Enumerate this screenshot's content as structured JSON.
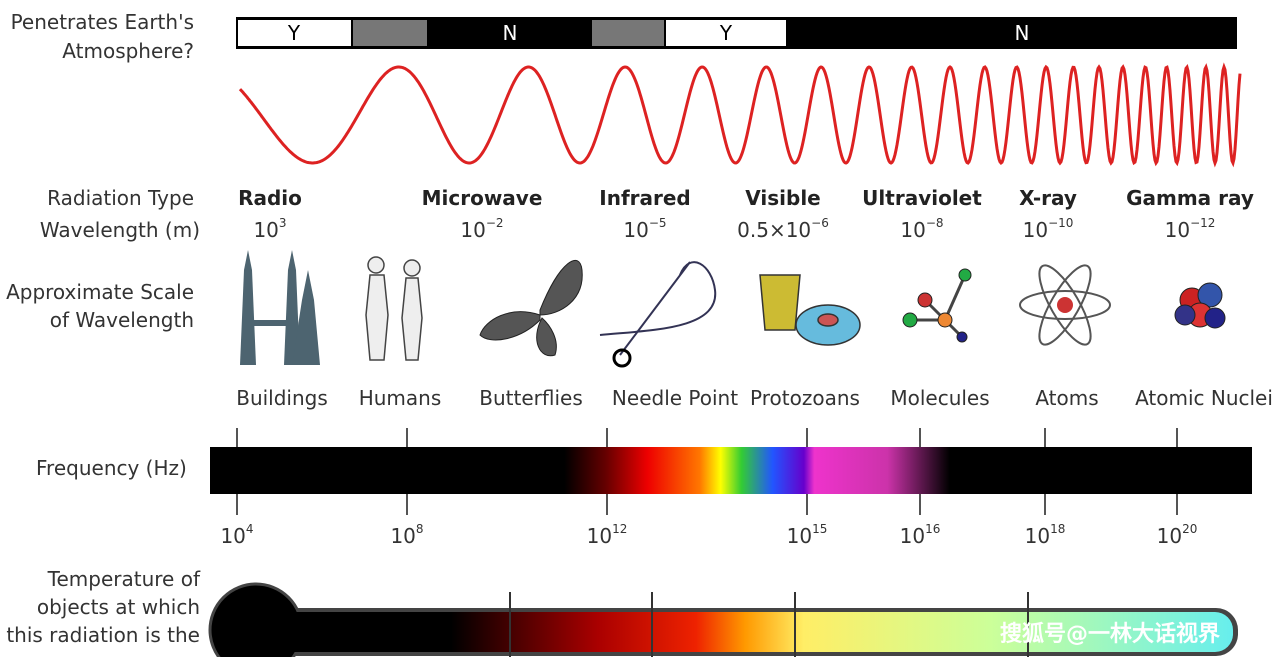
{
  "atmosphere": {
    "label": [
      "Penetrates Earth's",
      "Atmosphere?"
    ],
    "segments": [
      "Y",
      "N",
      "Y",
      "N"
    ]
  },
  "radiation": {
    "type_label": "Radiation Type",
    "wavelength_label": "Wavelength (m)",
    "types": [
      {
        "name": "Radio",
        "base": "10",
        "exp": "3"
      },
      {
        "name": "Microwave",
        "base": "10",
        "exp": "−2"
      },
      {
        "name": "Infrared",
        "base": "10",
        "exp": "−5"
      },
      {
        "name": "Visible",
        "base": "0.5×10",
        "exp": "−6"
      },
      {
        "name": "Ultraviolet",
        "base": "10",
        "exp": "−8"
      },
      {
        "name": "X-ray",
        "base": "10",
        "exp": "−10"
      },
      {
        "name": "Gamma ray",
        "base": "10",
        "exp": "−12"
      }
    ]
  },
  "scale": {
    "label": [
      "Approximate Scale",
      "of Wavelength"
    ],
    "objects": [
      "Buildings",
      "Humans",
      "Butterflies",
      "Needle Point",
      "Protozoans",
      "Molecules",
      "Atoms",
      "Atomic Nuclei"
    ]
  },
  "frequency": {
    "label": "Frequency (Hz)",
    "ticks": [
      {
        "base": "10",
        "exp": "4"
      },
      {
        "base": "10",
        "exp": "8"
      },
      {
        "base": "10",
        "exp": "12"
      },
      {
        "base": "10",
        "exp": "15"
      },
      {
        "base": "10",
        "exp": "16"
      },
      {
        "base": "10",
        "exp": "18"
      },
      {
        "base": "10",
        "exp": "20"
      }
    ]
  },
  "temperature": {
    "label": [
      "Temperature of",
      "objects at which",
      "this radiation is the"
    ]
  },
  "watermark": "搜狐号@一林大话视界"
}
